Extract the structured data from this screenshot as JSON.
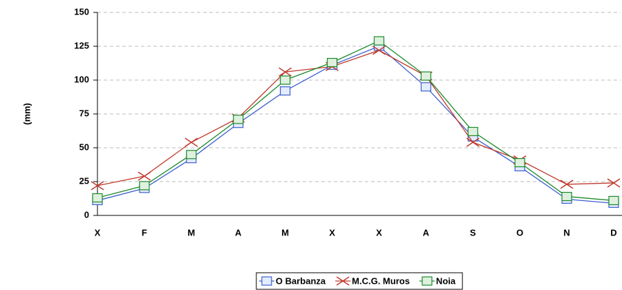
{
  "chart_data": {
    "type": "line",
    "ylabel": "(mm)",
    "categories": [
      "X",
      "F",
      "M",
      "A",
      "M",
      "X",
      "X",
      "A",
      "S",
      "O",
      "N",
      "D"
    ],
    "series": [
      {
        "name": "O Barbanza",
        "color": "#3a5fcd",
        "values": [
          11,
          20,
          42,
          68,
          92,
          111,
          125,
          95,
          58,
          36,
          12,
          9
        ]
      },
      {
        "name": "M.C.G. Muros",
        "color": "#c0392b",
        "values": [
          22,
          29,
          54,
          72,
          106,
          110,
          122,
          103,
          54,
          41,
          23,
          24
        ]
      },
      {
        "name": "Noia",
        "color": "#1a8a2a",
        "values": [
          13,
          22,
          45,
          71,
          100,
          113,
          129,
          103,
          62,
          39,
          14,
          11
        ]
      }
    ],
    "ylim": [
      0,
      150
    ],
    "yticks": [
      0,
      25,
      50,
      75,
      100,
      125,
      150
    ],
    "grid": true,
    "legend": "bottom"
  }
}
